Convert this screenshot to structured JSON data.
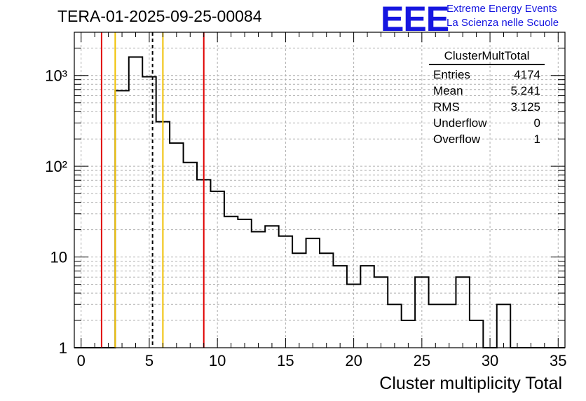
{
  "header": {
    "title": "TERA-01-2025-09-25-00084",
    "logo_text": "EEE",
    "logo_line1": "Extreme Energy Events",
    "logo_line2": "La Scienza nelle Scuole"
  },
  "stats_box": {
    "name": "ClusterMultTotal",
    "rows": [
      {
        "label": "Entries",
        "value": "4174"
      },
      {
        "label": "Mean",
        "value": "5.241"
      },
      {
        "label": "RMS",
        "value": "3.125"
      },
      {
        "label": "Underflow",
        "value": "0"
      },
      {
        "label": "Overflow",
        "value": "1"
      }
    ]
  },
  "chart_data": {
    "type": "histogram",
    "xlabel": "Cluster multiplicity Total",
    "ylabel": "",
    "xlim": [
      -0.5,
      35.5
    ],
    "ylim": [
      1,
      3000
    ],
    "yscale": "log",
    "grid": true,
    "x_ticks": [
      0,
      5,
      10,
      15,
      20,
      25,
      30,
      35
    ],
    "y_tick_labels": [
      {
        "value": 1,
        "label": "1"
      },
      {
        "value": 10,
        "label": "10"
      },
      {
        "value": 100,
        "label": "10²"
      },
      {
        "value": 1000,
        "label": "10³"
      }
    ],
    "bins": [
      {
        "x": 0,
        "count": 0
      },
      {
        "x": 1,
        "count": 0
      },
      {
        "x": 2,
        "count": 0
      },
      {
        "x": 3,
        "count": 680
      },
      {
        "x": 4,
        "count": 1600
      },
      {
        "x": 5,
        "count": 970
      },
      {
        "x": 6,
        "count": 310
      },
      {
        "x": 7,
        "count": 180
      },
      {
        "x": 8,
        "count": 110
      },
      {
        "x": 9,
        "count": 71
      },
      {
        "x": 10,
        "count": 53
      },
      {
        "x": 11,
        "count": 28
      },
      {
        "x": 12,
        "count": 26
      },
      {
        "x": 13,
        "count": 19
      },
      {
        "x": 14,
        "count": 22
      },
      {
        "x": 15,
        "count": 17
      },
      {
        "x": 16,
        "count": 11
      },
      {
        "x": 17,
        "count": 16
      },
      {
        "x": 18,
        "count": 11
      },
      {
        "x": 19,
        "count": 8
      },
      {
        "x": 20,
        "count": 5
      },
      {
        "x": 21,
        "count": 8
      },
      {
        "x": 22,
        "count": 6
      },
      {
        "x": 23,
        "count": 3
      },
      {
        "x": 24,
        "count": 2
      },
      {
        "x": 25,
        "count": 6
      },
      {
        "x": 26,
        "count": 3
      },
      {
        "x": 27,
        "count": 3
      },
      {
        "x": 28,
        "count": 6
      },
      {
        "x": 29,
        "count": 2
      },
      {
        "x": 30,
        "count": 0
      },
      {
        "x": 31,
        "count": 3
      },
      {
        "x": 32,
        "count": 0
      },
      {
        "x": 33,
        "count": 0
      },
      {
        "x": 34,
        "count": 0
      },
      {
        "x": 35,
        "count": 0
      }
    ],
    "vertical_lines": [
      {
        "x": 1.5,
        "color": "#e00000",
        "style": "solid"
      },
      {
        "x": 2.5,
        "color": "#f0c000",
        "style": "solid"
      },
      {
        "x": 5.241,
        "color": "#000000",
        "style": "dashed"
      },
      {
        "x": 6.0,
        "color": "#f0c000",
        "style": "solid"
      },
      {
        "x": 9.0,
        "color": "#e00000",
        "style": "solid"
      }
    ]
  }
}
